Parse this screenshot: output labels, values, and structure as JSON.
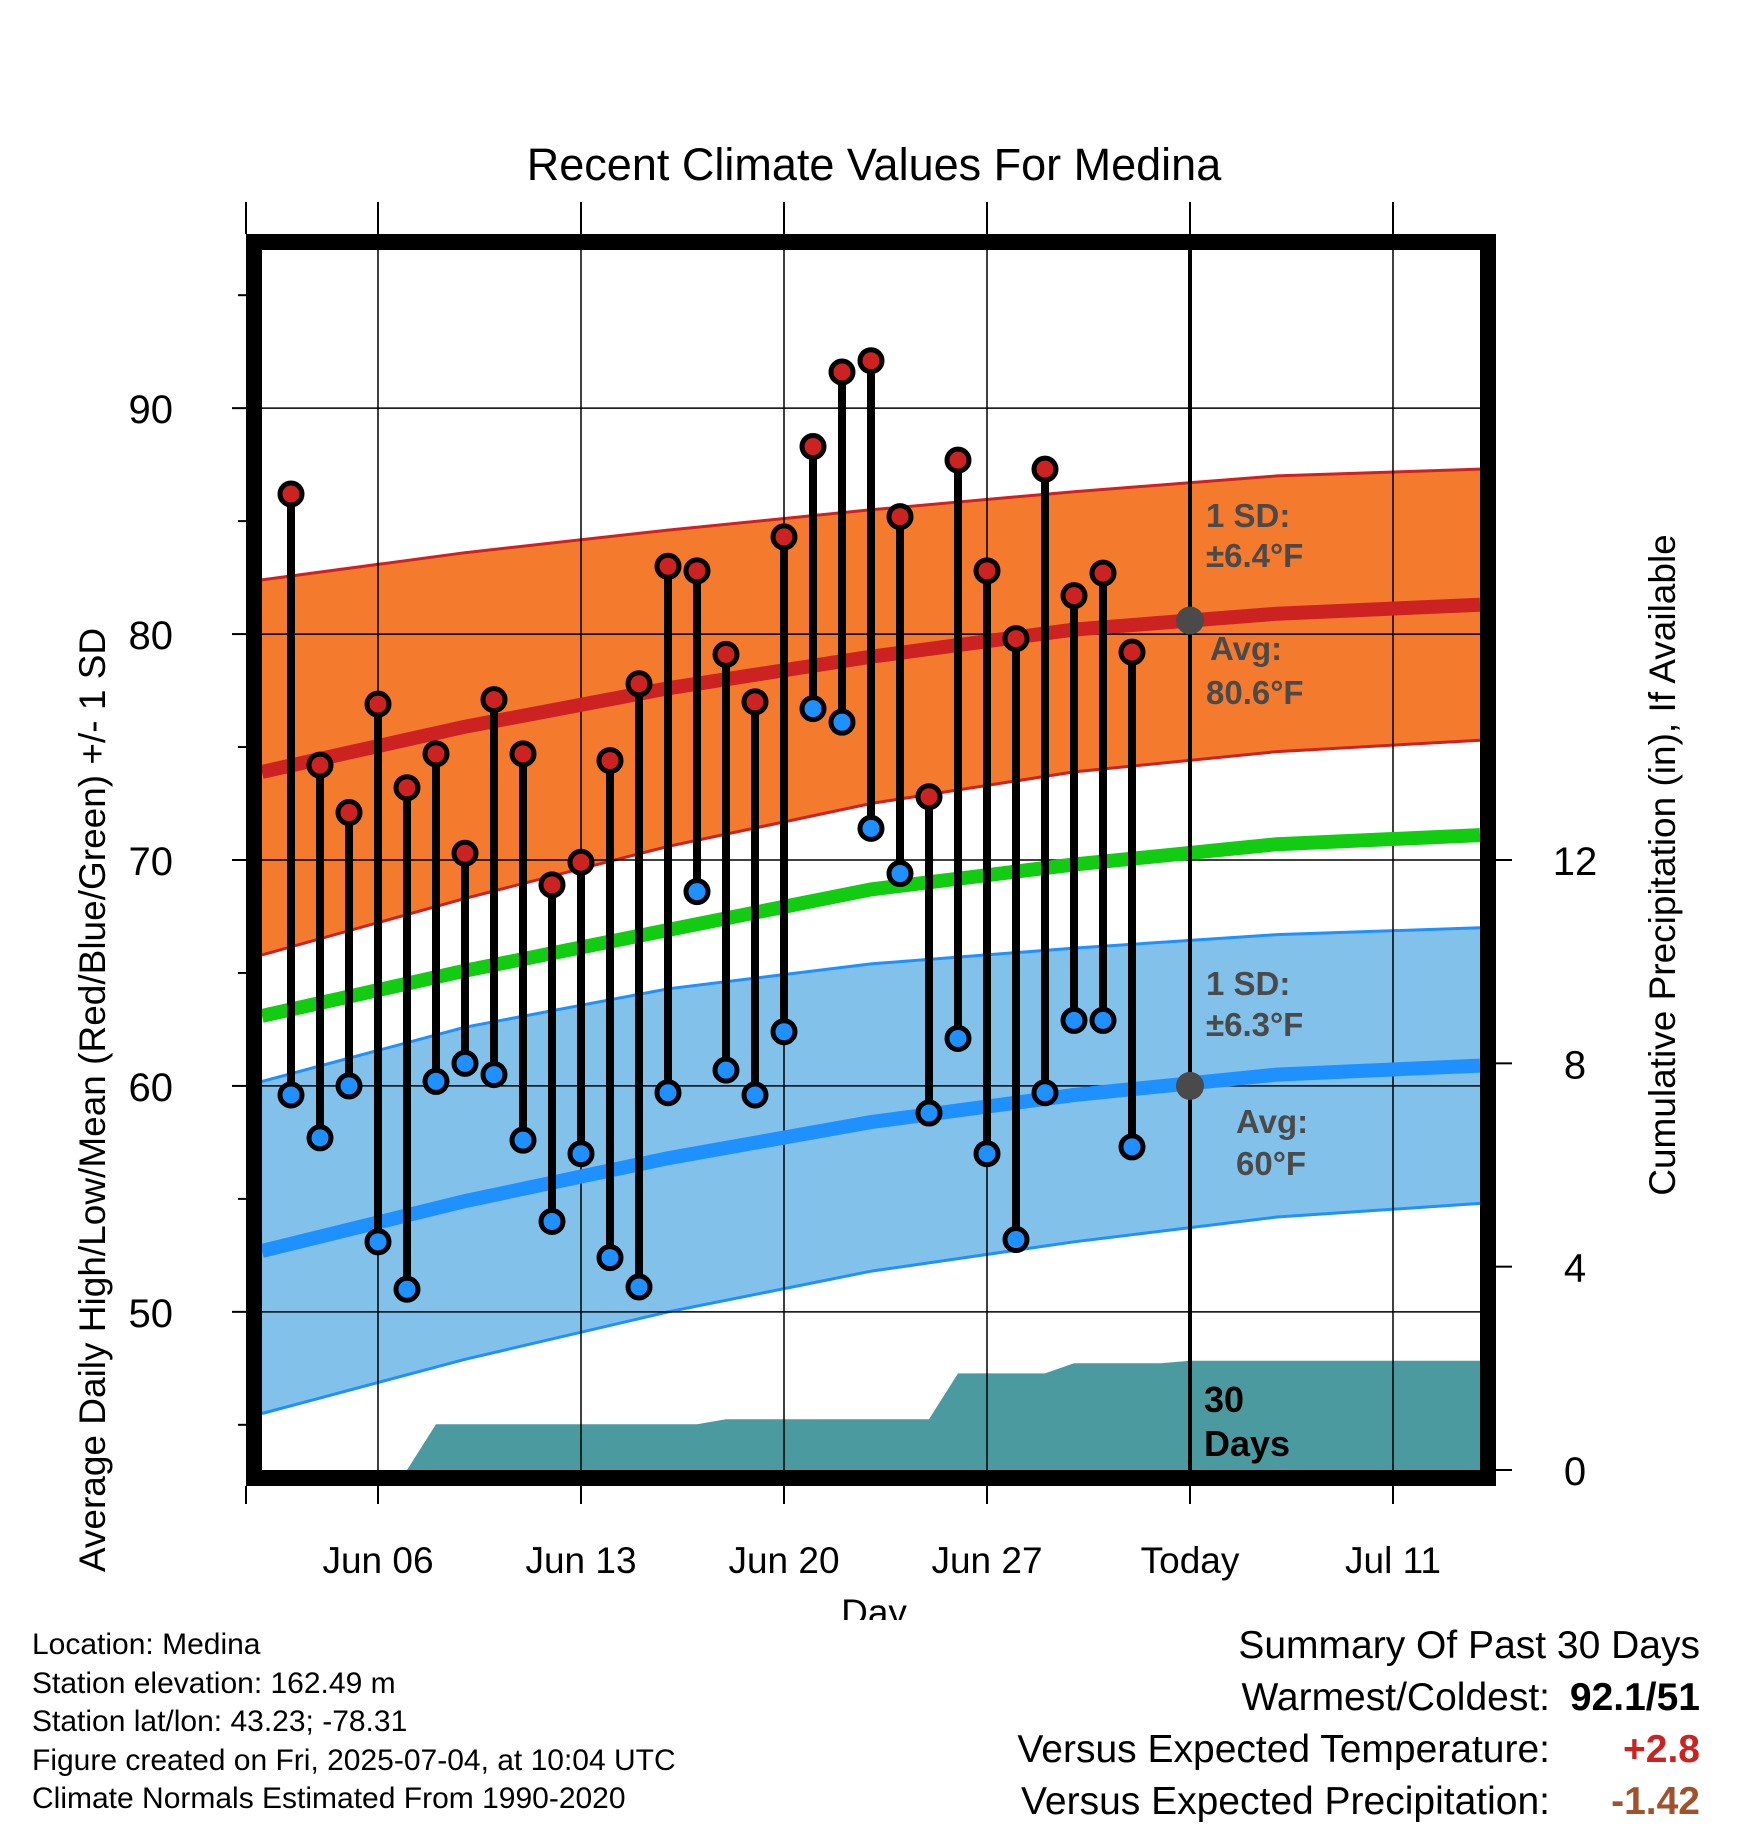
{
  "chart_data": {
    "type": "line",
    "title": "Recent Climate Values For Medina",
    "xlabel": "Day",
    "ylabel": "Average Daily High/Low/Mean (Red/Blue/Green) +/- 1 SD",
    "y2label": "Cumulative Precipitation (in), If Available",
    "ylim": [
      43,
      97
    ],
    "yticks": [
      50,
      60,
      70,
      80,
      90
    ],
    "y2lim": [
      0,
      24
    ],
    "y2ticks": [
      0,
      4,
      8,
      12
    ],
    "xlim": [
      "2025-06-02",
      "2025-07-14"
    ],
    "xticks": [
      {
        "date": "2025-06-06",
        "label": "Jun 06"
      },
      {
        "date": "2025-06-13",
        "label": "Jun 13"
      },
      {
        "date": "2025-06-20",
        "label": "Jun 20"
      },
      {
        "date": "2025-06-27",
        "label": "Jun 27"
      },
      {
        "date": "2025-07-04",
        "label": "Today"
      },
      {
        "date": "2025-07-11",
        "label": "Jul 11"
      }
    ],
    "grid": true,
    "today": "2025-07-04",
    "normals": {
      "dates": [
        "2025-06-02",
        "2025-06-09",
        "2025-06-16",
        "2025-06-23",
        "2025-06-30",
        "2025-07-07",
        "2025-07-14"
      ],
      "high_mean": [
        73.9,
        75.9,
        77.6,
        79.0,
        80.2,
        80.9,
        81.3
      ],
      "high_upper": [
        82.4,
        83.6,
        84.6,
        85.5,
        86.3,
        87.0,
        87.3
      ],
      "high_lower": [
        65.8,
        68.3,
        70.6,
        72.5,
        73.9,
        74.8,
        75.3
      ],
      "mean": [
        63.1,
        65.1,
        66.9,
        68.7,
        69.8,
        70.7,
        71.1
      ],
      "low_mean": [
        52.7,
        54.9,
        56.8,
        58.4,
        59.6,
        60.5,
        60.9
      ],
      "low_upper": [
        60.2,
        62.6,
        64.3,
        65.4,
        66.1,
        66.7,
        67.0
      ],
      "low_lower": [
        45.5,
        47.9,
        50.0,
        51.8,
        53.1,
        54.2,
        54.8
      ]
    },
    "series": [
      {
        "name": "High",
        "color": "#cc2222",
        "x": [
          "2025-06-03",
          "2025-06-04",
          "2025-06-05",
          "2025-06-06",
          "2025-06-07",
          "2025-06-08",
          "2025-06-09",
          "2025-06-10",
          "2025-06-11",
          "2025-06-12",
          "2025-06-13",
          "2025-06-14",
          "2025-06-15",
          "2025-06-16",
          "2025-06-17",
          "2025-06-18",
          "2025-06-19",
          "2025-06-20",
          "2025-06-21",
          "2025-06-22",
          "2025-06-23",
          "2025-06-24",
          "2025-06-25",
          "2025-06-26",
          "2025-06-27",
          "2025-06-28",
          "2025-06-29",
          "2025-06-30",
          "2025-07-01",
          "2025-07-02",
          "2025-07-03"
        ],
        "values": [
          86.2,
          74.2,
          72.1,
          76.9,
          73.2,
          74.7,
          70.3,
          77.1,
          74.7,
          68.9,
          69.9,
          74.4,
          77.8,
          83.0,
          82.8,
          79.1,
          77.0,
          84.3,
          88.3,
          91.6,
          92.1,
          85.2,
          72.8,
          87.7,
          82.8,
          79.8,
          87.3,
          81.7,
          82.7,
          79.2,
          null
        ]
      },
      {
        "name": "Low",
        "color": "#1e90ff",
        "x": [
          "2025-06-03",
          "2025-06-04",
          "2025-06-05",
          "2025-06-06",
          "2025-06-07",
          "2025-06-08",
          "2025-06-09",
          "2025-06-10",
          "2025-06-11",
          "2025-06-12",
          "2025-06-13",
          "2025-06-14",
          "2025-06-15",
          "2025-06-16",
          "2025-06-17",
          "2025-06-18",
          "2025-06-19",
          "2025-06-20",
          "2025-06-21",
          "2025-06-22",
          "2025-06-23",
          "2025-06-24",
          "2025-06-25",
          "2025-06-26",
          "2025-06-27",
          "2025-06-28",
          "2025-06-29",
          "2025-06-30",
          "2025-07-01",
          "2025-07-02",
          "2025-07-03"
        ],
        "values": [
          59.6,
          57.7,
          60.0,
          53.1,
          51.0,
          60.2,
          61.0,
          60.5,
          57.6,
          54.0,
          57.0,
          52.4,
          51.1,
          59.7,
          68.6,
          60.7,
          59.6,
          62.4,
          76.7,
          76.1,
          71.4,
          69.4,
          58.8,
          62.1,
          57.0,
          53.2,
          59.7,
          62.9,
          62.9,
          57.3,
          null
        ]
      }
    ],
    "precipitation": {
      "x": [
        "2025-06-02",
        "2025-06-04",
        "2025-06-05",
        "2025-06-06",
        "2025-06-07",
        "2025-06-08",
        "2025-06-09",
        "2025-06-10",
        "2025-06-11",
        "2025-06-12",
        "2025-06-13",
        "2025-06-14",
        "2025-06-15",
        "2025-06-16",
        "2025-06-17",
        "2025-06-18",
        "2025-06-19",
        "2025-06-20",
        "2025-06-21",
        "2025-06-22",
        "2025-06-23",
        "2025-06-24",
        "2025-06-25",
        "2025-06-26",
        "2025-06-27",
        "2025-06-28",
        "2025-06-29",
        "2025-06-30",
        "2025-07-01",
        "2025-07-02",
        "2025-07-03",
        "2025-07-04",
        "2025-07-14"
      ],
      "values": [
        0,
        0,
        0,
        0,
        0,
        0.9,
        0.9,
        0.9,
        0.9,
        0.9,
        0.9,
        0.9,
        0.9,
        0.9,
        0.9,
        1.0,
        1.0,
        1.0,
        1.0,
        1.0,
        1.0,
        1.0,
        1.0,
        1.9,
        1.9,
        1.9,
        1.9,
        2.1,
        2.1,
        2.1,
        2.1,
        2.15,
        2.15
      ],
      "label_line1": "30",
      "label_line2": "Days",
      "color": "#4a9aa0"
    },
    "annotations": {
      "high_sd_line1": "1 SD:",
      "high_sd_line2": "±6.4°F",
      "high_avg_line1": "Avg:",
      "high_avg_line2": "80.6°F",
      "high_avg_value": 80.6,
      "low_sd_line1": "1 SD:",
      "low_sd_line2": "±6.3°F",
      "low_avg_line1": "Avg:",
      "low_avg_line2": "60°F",
      "low_avg_value": 60.0
    },
    "colors": {
      "high_band": "#f47b2e",
      "high_line": "#cc2222",
      "mean_line": "#11cc11",
      "low_band": "#82c2ea",
      "low_line": "#1e90ff",
      "precip": "#4a9aa0",
      "annotation": "#4a4a4a"
    }
  },
  "footer": {
    "location": "Location: Medina",
    "elevation": "Station elevation: 162.49 m",
    "latlon": "Station lat/lon: 43.23; -78.31",
    "created": "Figure created on Fri, 2025-07-04, at 10:04 UTC",
    "normals": "Climate Normals Estimated From 1990-2020"
  },
  "summary": {
    "title": "Summary Of Past 30 Days",
    "warmest_label": "Warmest/Coldest:",
    "warmest_value": "92.1/51",
    "temp_label": "Versus Expected Temperature:",
    "temp_value": "+2.8",
    "temp_color": "#cc2222",
    "precip_label": "Versus Expected Precipitation:",
    "precip_value": "-1.42",
    "precip_color": "#a0522d"
  }
}
